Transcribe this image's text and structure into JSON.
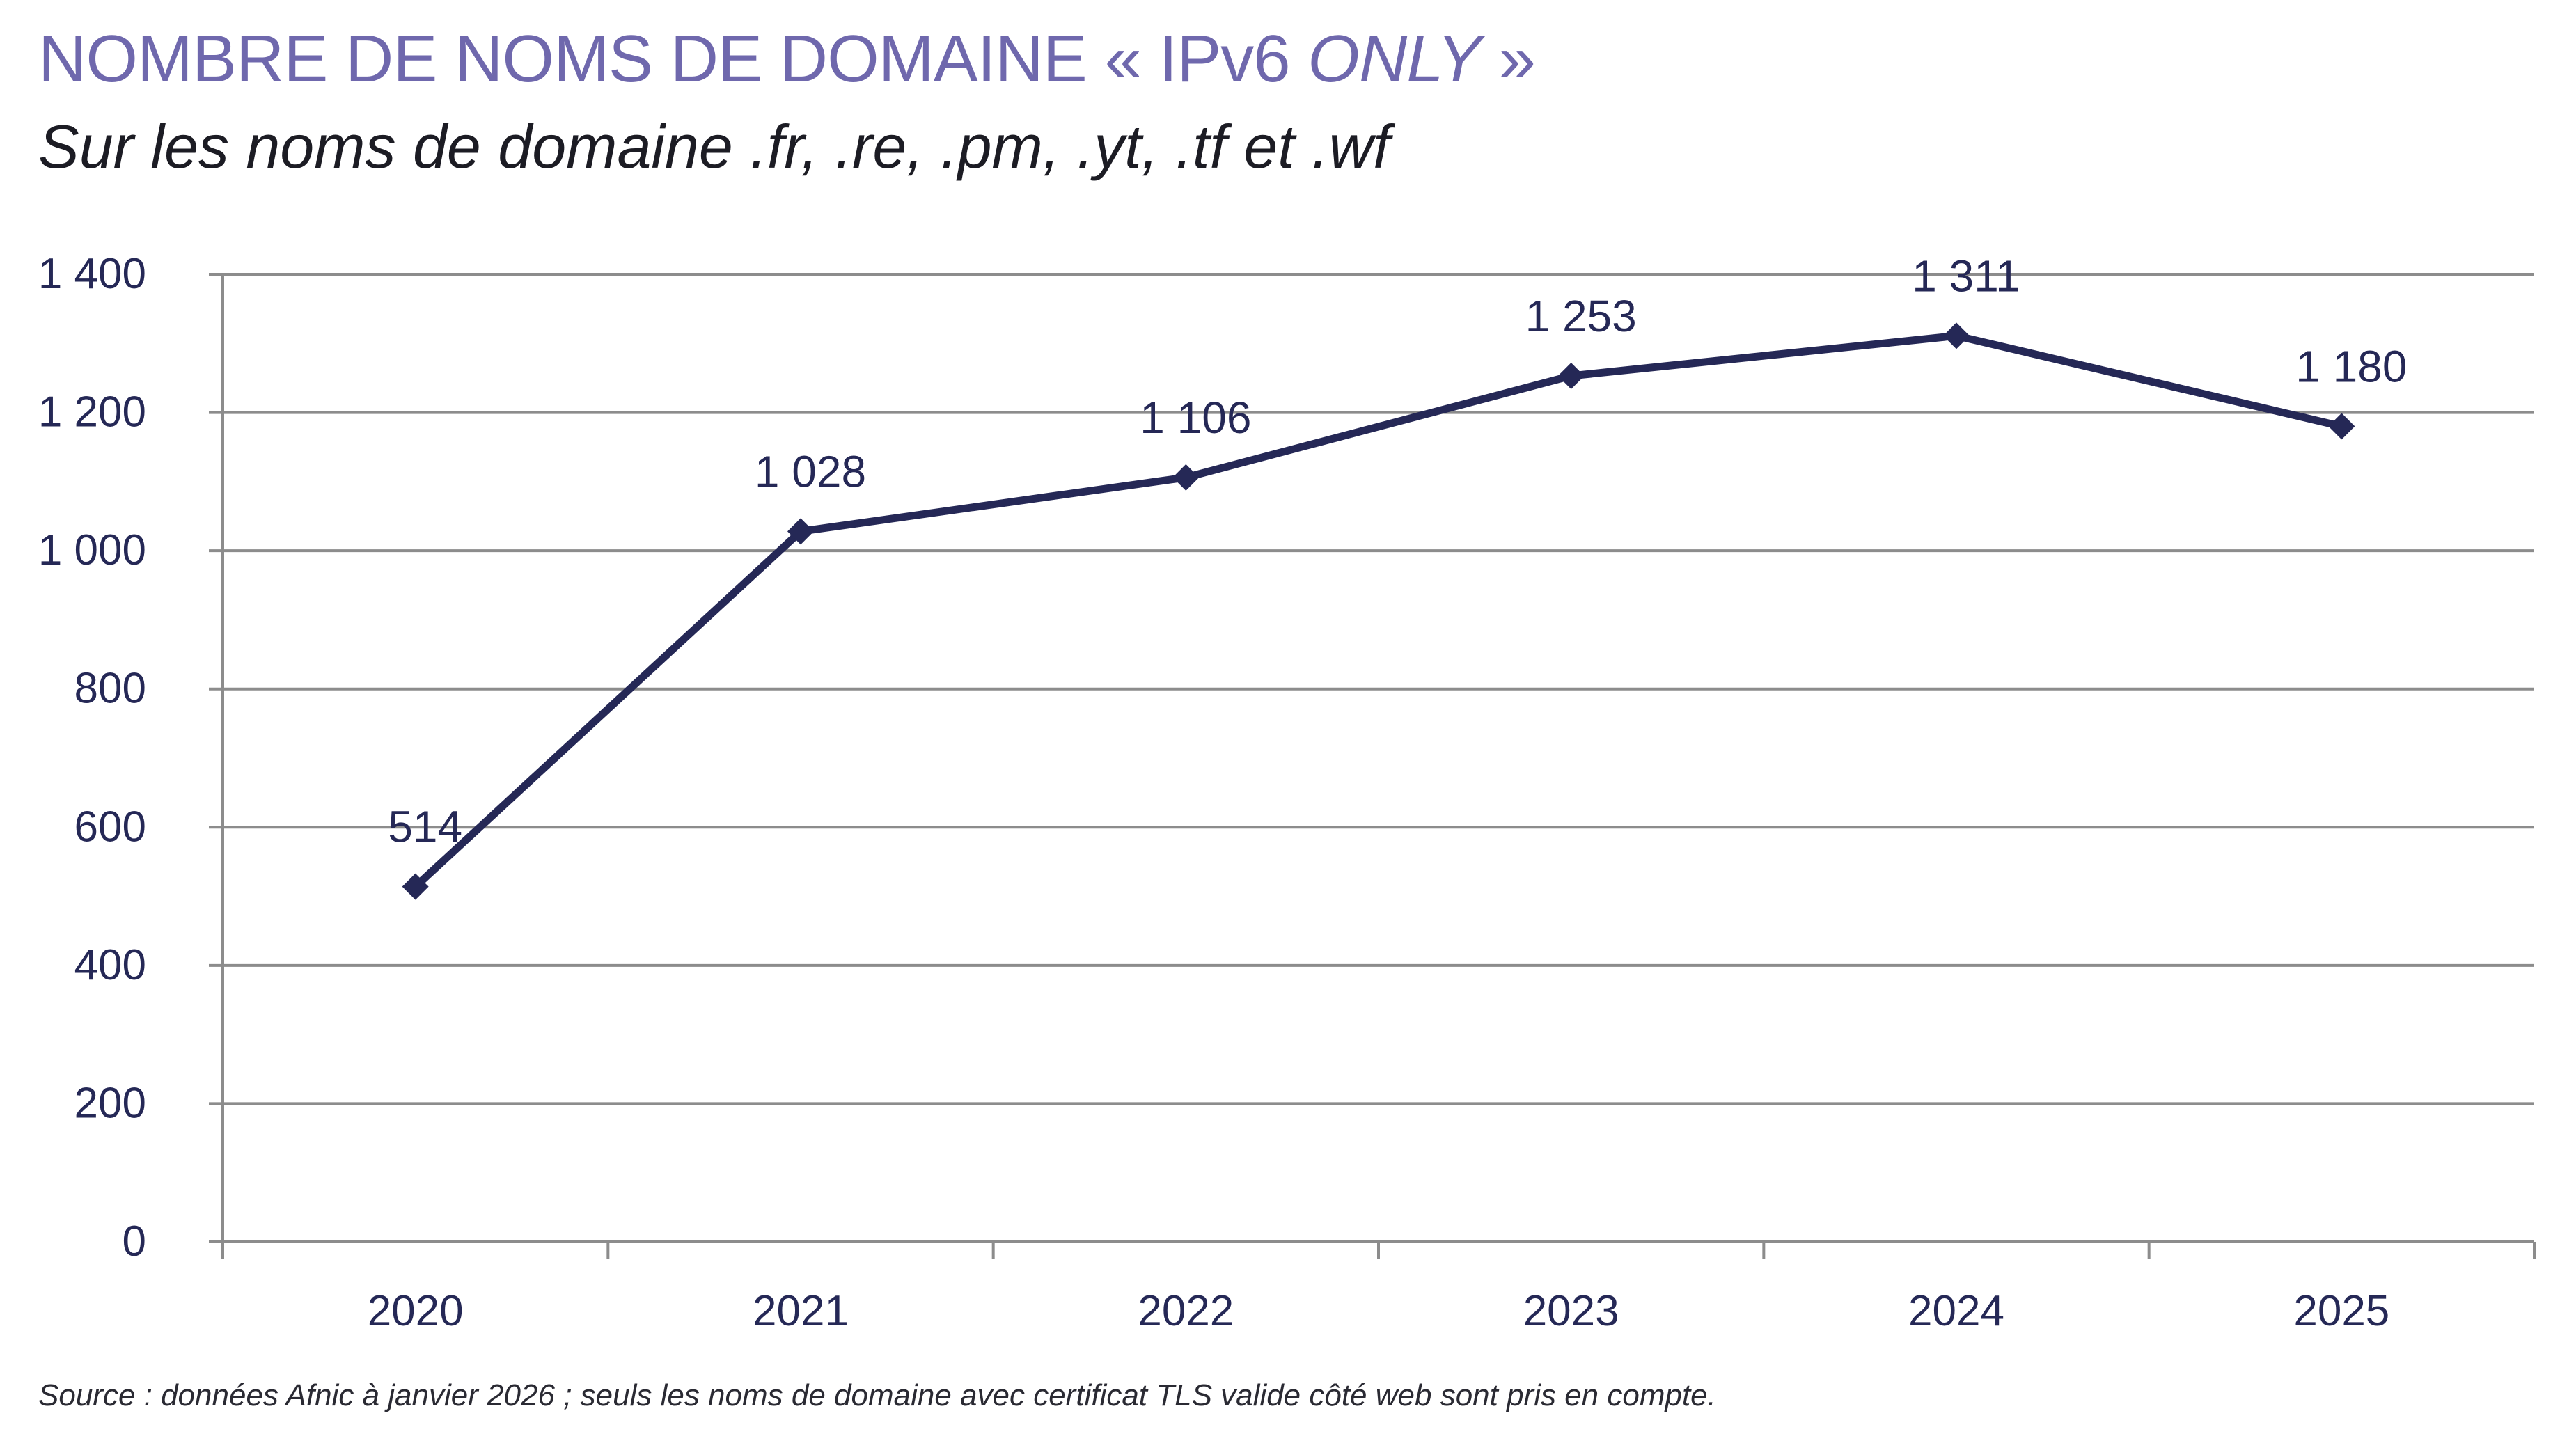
{
  "header": {
    "title_main": "NOMBRE DE NOMS DE DOMAINE « IPv6 ",
    "title_italic": "ONLY",
    "title_end": " »",
    "subtitle": "Sur les noms de domaine .fr, .re, .pm, .yt, .tf et .wf"
  },
  "footer": {
    "source": "Source : données Afnic à janvier 2026 ; seuls les noms de domaine avec certificat TLS valide côté web sont pris en compte."
  },
  "colors": {
    "title": "#6f68ad",
    "line": "#252856",
    "grid": "#8c8c8c"
  },
  "chart_data": {
    "type": "line",
    "title": "NOMBRE DE NOMS DE DOMAINE « IPv6 ONLY »",
    "subtitle": "Sur les noms de domaine .fr, .re, .pm, .yt, .tf et .wf",
    "xlabel": "",
    "ylabel": "",
    "categories": [
      "2020",
      "2021",
      "2022",
      "2023",
      "2024",
      "2025"
    ],
    "values": [
      514,
      1028,
      1106,
      1253,
      1311,
      1180
    ],
    "data_labels": [
      "514",
      "1 028",
      "1 106",
      "1 253",
      "1 311",
      "1 180"
    ],
    "yticks": [
      0,
      200,
      400,
      600,
      800,
      1000,
      1200,
      1400
    ],
    "ytick_labels": [
      "0",
      "200",
      "400",
      "600",
      "800",
      "1 000",
      "1 200",
      "1 400"
    ],
    "ylim": [
      0,
      1400
    ],
    "grid": true,
    "legend": "none",
    "marker": "diamond"
  }
}
